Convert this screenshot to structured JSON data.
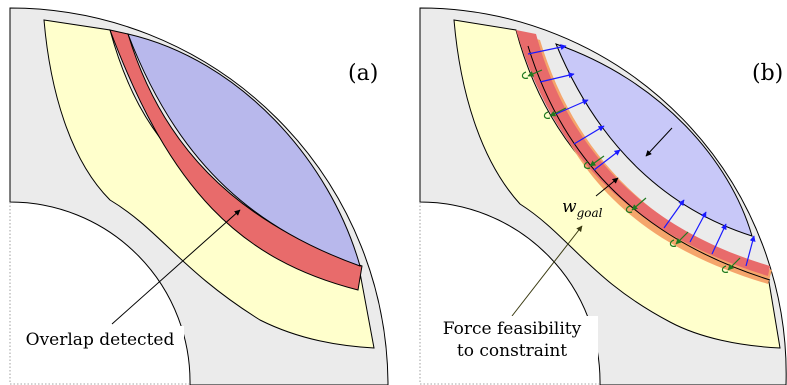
{
  "panels": {
    "a": {
      "tag": "(a)",
      "annotation": "Overlap detected"
    },
    "b": {
      "tag": "(b)",
      "annotation_line1": "Force feasibility",
      "annotation_line2": "to constraint",
      "goal_label_base": "w",
      "goal_label_sub": "goal"
    }
  },
  "colors": {
    "gray_region": "#ebebeb",
    "yellow_region": "#ffffcc",
    "red_overlap": "#e86b6b",
    "blue_region_a": "#b8b8ec",
    "blue_region_b": "#c8c8f8",
    "orange_band": "#f5a56b",
    "blue_arrow": "#1a1aff",
    "green_arrow": "#207a20"
  }
}
